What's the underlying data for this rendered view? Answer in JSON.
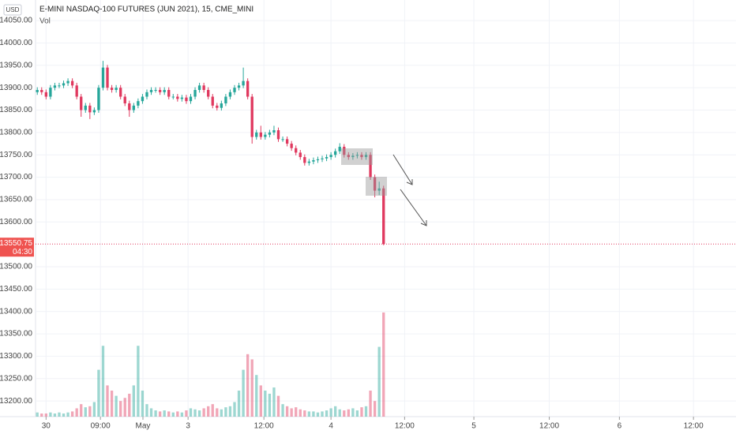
{
  "chart_data": {
    "type": "candlestick",
    "title": "E-MINI NASDAQ-100 FUTURES (JUN 2021), 15, CME_MINI",
    "currency": "USD",
    "indicator": "Vol",
    "up_color": "#26a69a",
    "down_color": "#e0395f",
    "grid": true,
    "xlim": [
      -0.4,
      159.4
    ],
    "xticks": [
      {
        "value": 2,
        "label": "30"
      },
      {
        "value": 14.4,
        "label": "09:00"
      },
      {
        "value": 24.1,
        "label": "May"
      },
      {
        "value": 34.4,
        "label": "3"
      },
      {
        "value": 51.7,
        "label": "12:00"
      },
      {
        "value": 67,
        "label": "4"
      },
      {
        "value": 83.8,
        "label": "12:00"
      },
      {
        "value": 99.6,
        "label": "5"
      },
      {
        "value": 116.8,
        "label": "12:00"
      },
      {
        "value": 132.8,
        "label": "6"
      },
      {
        "value": 149.7,
        "label": "12:00"
      }
    ],
    "ylim": [
      13165,
      14096
    ],
    "yticks": [
      {
        "value": 13200,
        "label": "13200.00"
      },
      {
        "value": 13250,
        "label": "13250.00"
      },
      {
        "value": 13300,
        "label": "13300.00"
      },
      {
        "value": 13350,
        "label": "13350.00"
      },
      {
        "value": 13400,
        "label": "13400.00"
      },
      {
        "value": 13450,
        "label": "13450.00"
      },
      {
        "value": 13500,
        "label": "13500.00"
      },
      {
        "value": 13600,
        "label": "13600.00"
      },
      {
        "value": 13650,
        "label": "13650.00"
      },
      {
        "value": 13700,
        "label": "13700.00"
      },
      {
        "value": 13750,
        "label": "13750.00"
      },
      {
        "value": 13800,
        "label": "13800.00"
      },
      {
        "value": 13850,
        "label": "13850.00"
      },
      {
        "value": 13900,
        "label": "13900.00"
      },
      {
        "value": 13950,
        "label": "13950.00"
      },
      {
        "value": 14000,
        "label": "14000.00"
      },
      {
        "value": 14050,
        "label": "14050.00"
      }
    ],
    "last_price": 13550.75,
    "countdown": "04:30",
    "open": [
      13890,
      13895,
      13890,
      13880,
      13900,
      13905,
      13905,
      13910,
      13915,
      13905,
      13880,
      13850,
      13860,
      13845,
      13850,
      13900,
      13945,
      13900,
      13895,
      13900,
      13880,
      13865,
      13850,
      13860,
      13870,
      13880,
      13890,
      13895,
      13895,
      13890,
      13895,
      13880,
      13880,
      13875,
      13878,
      13870,
      13880,
      13895,
      13905,
      13895,
      13880,
      13860,
      13855,
      13865,
      13880,
      13890,
      13900,
      13905,
      13915,
      13880,
      13790,
      13800,
      13790,
      13795,
      13800,
      13805,
      13785,
      13785,
      13775,
      13765,
      13755,
      13745,
      13732,
      13735,
      13738,
      13740,
      13742,
      13745,
      13750,
      13758,
      13768,
      13750,
      13745,
      13748,
      13750,
      13745,
      13750,
      13700,
      13670,
      13675
    ],
    "high": [
      13901,
      13901,
      13896,
      13906,
      13911,
      13911,
      13916,
      13921,
      13921,
      13911,
      13886,
      13866,
      13866,
      13856,
      13906,
      13960,
      13951,
      13906,
      13906,
      13906,
      13886,
      13871,
      13866,
      13876,
      13886,
      13896,
      13901,
      13901,
      13901,
      13901,
      13901,
      13886,
      13886,
      13884,
      13884,
      13886,
      13901,
      13911,
      13911,
      13901,
      13886,
      13866,
      13871,
      13886,
      13896,
      13906,
      13911,
      13945,
      13921,
      13886,
      13806,
      13815,
      13801,
      13806,
      13815,
      13811,
      13791,
      13791,
      13781,
      13771,
      13761,
      13751,
      13741,
      13744,
      13746,
      13748,
      13751,
      13756,
      13764,
      13776,
      13774,
      13756,
      13754,
      13756,
      13756,
      13756,
      13756,
      13706,
      13690,
      13681
    ],
    "low": [
      13884,
      13884,
      13874,
      13874,
      13894,
      13899,
      13899,
      13904,
      13899,
      13874,
      13835,
      13844,
      13830,
      13839,
      13844,
      13894,
      13894,
      13889,
      13889,
      13874,
      13859,
      13835,
      13844,
      13854,
      13864,
      13874,
      13884,
      13889,
      13884,
      13884,
      13874,
      13874,
      13869,
      13869,
      13864,
      13864,
      13874,
      13889,
      13889,
      13874,
      13854,
      13849,
      13849,
      13859,
      13874,
      13884,
      13894,
      13899,
      13874,
      13775,
      13784,
      13784,
      13784,
      13789,
      13794,
      13779,
      13779,
      13769,
      13759,
      13749,
      13739,
      13726,
      13726,
      13729,
      13732,
      13734,
      13736,
      13739,
      13744,
      13752,
      13744,
      13739,
      13739,
      13742,
      13739,
      13739,
      13694,
      13655,
      13660,
      13548
    ],
    "close": [
      13895,
      13890,
      13880,
      13900,
      13905,
      13905,
      13910,
      13915,
      13905,
      13880,
      13850,
      13860,
      13845,
      13850,
      13900,
      13945,
      13900,
      13895,
      13900,
      13880,
      13865,
      13850,
      13860,
      13870,
      13880,
      13890,
      13895,
      13895,
      13890,
      13895,
      13880,
      13880,
      13875,
      13878,
      13870,
      13880,
      13895,
      13905,
      13895,
      13880,
      13860,
      13855,
      13865,
      13880,
      13890,
      13900,
      13905,
      13915,
      13880,
      13790,
      13800,
      13790,
      13795,
      13800,
      13805,
      13785,
      13785,
      13775,
      13765,
      13755,
      13745,
      13732,
      13735,
      13738,
      13740,
      13742,
      13745,
      13750,
      13758,
      13768,
      13750,
      13745,
      13748,
      13750,
      13745,
      13750,
      13700,
      13670,
      13675,
      13550.75
    ],
    "volume": [
      4,
      3,
      3,
      4,
      3,
      4,
      3,
      4,
      5,
      8,
      12,
      9,
      10,
      14,
      45,
      68,
      30,
      25,
      20,
      15,
      18,
      22,
      30,
      68,
      25,
      12,
      8,
      6,
      5,
      6,
      5,
      4,
      5,
      4,
      6,
      8,
      7,
      6,
      8,
      10,
      12,
      8,
      7,
      9,
      10,
      14,
      25,
      45,
      60,
      55,
      40,
      30,
      25,
      22,
      28,
      20,
      12,
      10,
      8,
      9,
      7,
      6,
      5,
      5,
      4,
      5,
      6,
      8,
      10,
      7,
      6,
      7,
      8,
      6,
      9,
      10,
      25,
      15,
      67,
      100
    ]
  }
}
